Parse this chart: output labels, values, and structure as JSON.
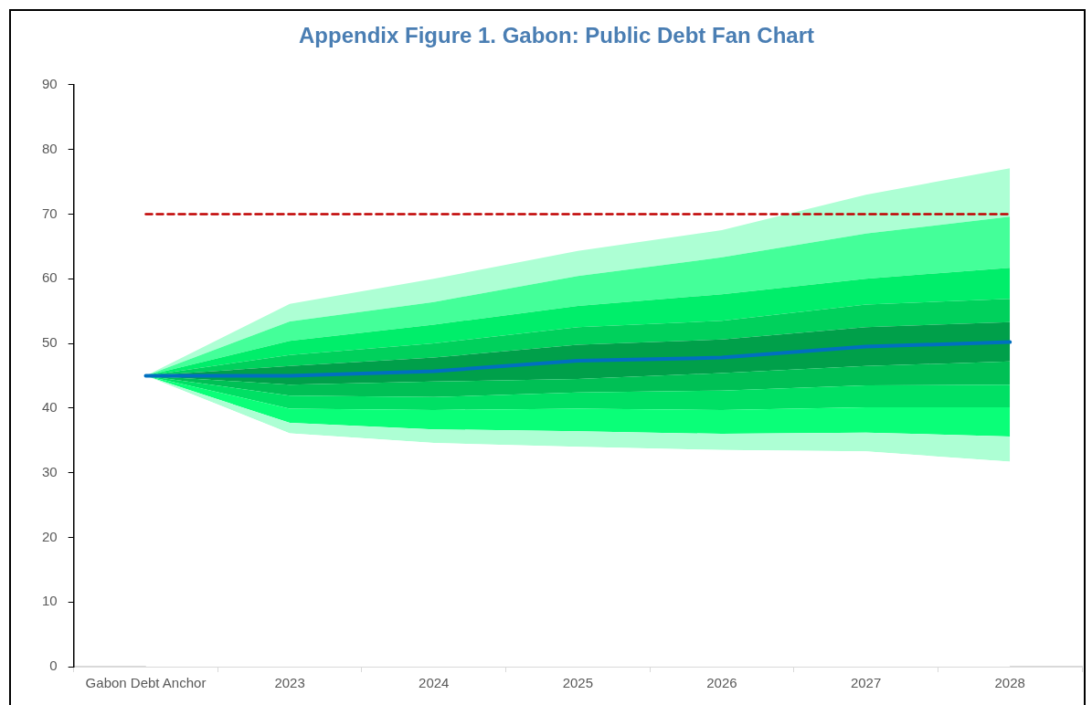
{
  "chart_data": {
    "type": "area",
    "stacked": true,
    "title": "Appendix Figure 1. Gabon: Public Debt Fan Chart",
    "categories": [
      "Gabon Debt Anchor",
      "2023",
      "2024",
      "2025",
      "2026",
      "2027",
      "2028"
    ],
    "series": [
      {
        "color": "#ffffff",
        "values": [
          45,
          36.1,
          34.6,
          34.0,
          33.5,
          33.3,
          31.7
        ]
      },
      {
        "color": "#adffd4",
        "values": [
          0,
          1.6,
          2.1,
          2.4,
          2.5,
          2.9,
          3.9
        ]
      },
      {
        "color": "#0aff78",
        "values": [
          0,
          2.2,
          3.0,
          3.5,
          3.7,
          3.9,
          4.5
        ]
      },
      {
        "color": "#00e064",
        "values": [
          0,
          2.0,
          2.0,
          2.5,
          3.0,
          3.4,
          3.5
        ]
      },
      {
        "color": "#00c055",
        "values": [
          0,
          1.7,
          2.4,
          2.1,
          2.7,
          3.0,
          3.6
        ]
      },
      {
        "color": "#00a04a",
        "values": [
          0,
          2.9,
          3.7,
          5.3,
          5.2,
          6.0,
          6.1
        ]
      },
      {
        "color": "#00d15c",
        "values": [
          0,
          1.7,
          2.2,
          2.7,
          2.9,
          3.5,
          3.6
        ]
      },
      {
        "color": "#00ee6a",
        "values": [
          0,
          2.2,
          2.9,
          3.3,
          4.1,
          4.0,
          4.8
        ]
      },
      {
        "color": "#44ff99",
        "values": [
          0,
          3.0,
          3.5,
          4.6,
          5.7,
          7.0,
          7.9
        ]
      },
      {
        "color": "#adffd4",
        "values": [
          0,
          2.7,
          3.6,
          3.9,
          4.2,
          6.0,
          7.5
        ]
      },
      {
        "type": "line",
        "color": "#0070c0",
        "values": [
          45,
          45.0,
          45.7,
          47.3,
          47.8,
          49.5,
          50.2
        ]
      },
      {
        "type": "line",
        "color": "#c00000",
        "line_style": "dashed",
        "values": [
          70,
          70,
          70,
          70,
          70,
          70,
          70
        ]
      }
    ],
    "ylim": [
      0,
      90
    ],
    "yticks": [
      0,
      10,
      20,
      30,
      40,
      50,
      60,
      70,
      80,
      90
    ]
  }
}
